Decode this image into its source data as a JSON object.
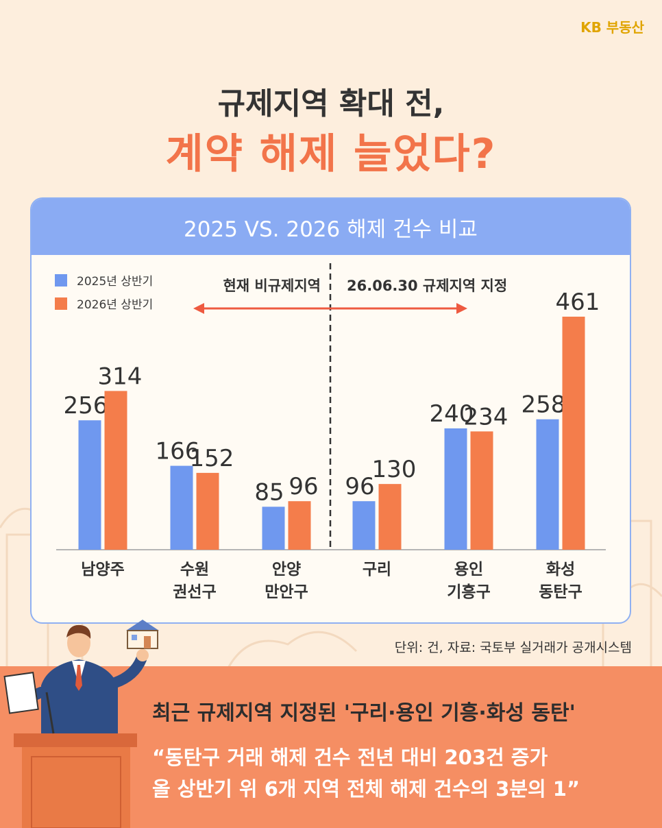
{
  "logo": "KB 부동산",
  "title_line1": "규제지역 확대 전,",
  "title_line2": "계약 해제 늘었다?",
  "card_title": "2025 VS. 2026 해제 건수 비교",
  "legend": [
    {
      "label": "2025년 상반기",
      "color": "#6f98ef"
    },
    {
      "label": "2026년 상반기",
      "color": "#f47d4b"
    }
  ],
  "region_left_label": "현재 비규제지역",
  "region_right_label": "26.06.30 규제지역 지정",
  "arrow_color": "#ee5a40",
  "chart_data": {
    "type": "bar",
    "categories": [
      [
        "남양주"
      ],
      [
        "수원",
        "권선구"
      ],
      [
        "안양",
        "만안구"
      ],
      [
        "구리"
      ],
      [
        "용인",
        "기흥구"
      ],
      [
        "화성",
        "동탄구"
      ]
    ],
    "series": [
      {
        "name": "2025년 상반기",
        "values": [
          256,
          166,
          85,
          96,
          240,
          258
        ]
      },
      {
        "name": "2026년 상반기",
        "values": [
          314,
          152,
          96,
          130,
          234,
          461
        ]
      }
    ],
    "ylim": [
      0,
      461
    ]
  },
  "source": "단위: 건, 자료: 국토부 실거래가 공개시스템",
  "headline": "최근 규제지역 지정된 '구리·용인 기흥·화성 동탄'",
  "quote_line1": "“동탄구 거래 해제 건수 전년 대비 203건 증가",
  "quote_line2": "올 상반기 위 6개 지역 전체 해제 건수의 3분의 1”"
}
